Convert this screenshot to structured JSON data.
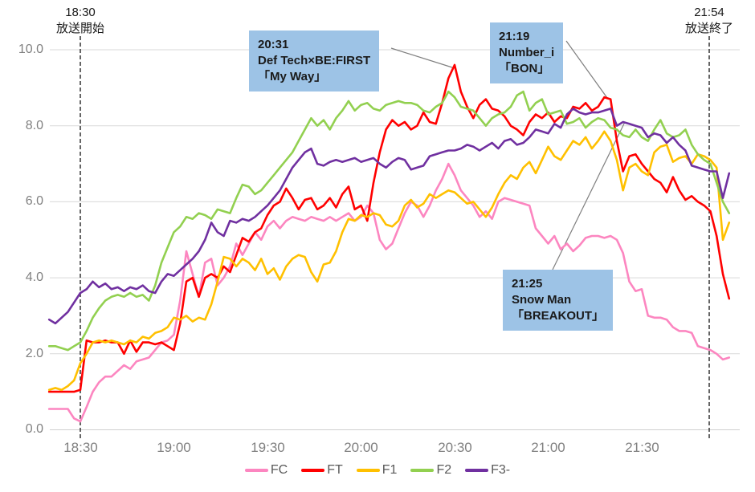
{
  "chart_data": {
    "type": "line",
    "title": "",
    "xlabel": "",
    "ylabel": "",
    "ylim": [
      0.0,
      10.0
    ],
    "grid": true,
    "legend_position": "bottom-center",
    "x_start": "18:20",
    "x_end": "21:58",
    "x_step_minutes": 2,
    "x_ticks": [
      "18:30",
      "19:00",
      "19:30",
      "20:00",
      "20:30",
      "21:00",
      "21:30"
    ],
    "y_ticks": [
      "10.0",
      "8.0",
      "6.0",
      "4.0",
      "2.0",
      "0.0"
    ],
    "grid_color": "#D9D9D9",
    "tick_color": "#808080",
    "series": [
      {
        "name": "FC",
        "color": "#FC86C0",
        "values": [
          0.55,
          0.55,
          0.55,
          0.55,
          0.3,
          0.22,
          0.6,
          1.0,
          1.25,
          1.4,
          1.4,
          1.55,
          1.7,
          1.6,
          1.8,
          1.85,
          1.9,
          2.1,
          2.3,
          2.35,
          2.5,
          3.4,
          4.7,
          4.1,
          3.5,
          4.4,
          4.5,
          3.8,
          4.0,
          4.3,
          4.9,
          4.6,
          4.9,
          5.2,
          5.0,
          5.35,
          5.5,
          5.3,
          5.5,
          5.6,
          5.55,
          5.5,
          5.6,
          5.55,
          5.5,
          5.6,
          5.5,
          5.6,
          5.7,
          5.5,
          5.6,
          5.9,
          5.7,
          5.0,
          4.75,
          4.9,
          5.3,
          5.7,
          6.0,
          5.9,
          5.6,
          5.9,
          6.3,
          6.6,
          7.0,
          6.7,
          6.3,
          6.1,
          5.9,
          5.6,
          5.75,
          5.55,
          6.0,
          6.1,
          6.05,
          6.0,
          5.95,
          5.9,
          5.3,
          5.1,
          4.9,
          5.1,
          4.75,
          4.9,
          4.7,
          4.85,
          5.05,
          5.1,
          5.1,
          5.05,
          5.1,
          5.0,
          4.65,
          3.9,
          3.65,
          3.7,
          3.0,
          2.95,
          2.95,
          2.9,
          2.7,
          2.6,
          2.6,
          2.55,
          2.2,
          2.15,
          2.1,
          2.0,
          1.85,
          1.9
        ]
      },
      {
        "name": "FT",
        "color": "#FF0000",
        "values": [
          1.0,
          1.0,
          1.0,
          1.0,
          1.0,
          1.05,
          2.35,
          2.3,
          2.3,
          2.35,
          2.3,
          2.3,
          2.0,
          2.35,
          2.05,
          2.3,
          2.3,
          2.25,
          2.3,
          2.2,
          2.1,
          2.8,
          3.9,
          4.0,
          3.5,
          4.0,
          4.1,
          4.0,
          4.3,
          4.15,
          4.6,
          5.05,
          4.95,
          5.2,
          5.3,
          5.65,
          5.9,
          6.0,
          6.35,
          6.1,
          5.8,
          6.05,
          6.1,
          5.8,
          5.9,
          6.1,
          5.85,
          6.2,
          6.4,
          5.8,
          5.9,
          5.5,
          6.5,
          7.3,
          7.9,
          8.15,
          8.0,
          8.1,
          7.9,
          8.0,
          8.35,
          8.1,
          8.05,
          8.6,
          9.25,
          9.6,
          8.9,
          8.5,
          8.2,
          8.55,
          8.7,
          8.45,
          8.4,
          8.25,
          8.0,
          7.9,
          7.75,
          8.1,
          8.3,
          8.2,
          8.35,
          8.1,
          8.25,
          8.2,
          8.5,
          8.45,
          8.6,
          8.4,
          8.5,
          8.75,
          8.7,
          7.6,
          6.8,
          7.2,
          7.25,
          7.0,
          6.8,
          6.6,
          6.5,
          6.25,
          6.65,
          6.3,
          6.05,
          6.15,
          6.0,
          5.9,
          5.75,
          5.1,
          4.1,
          3.45
        ]
      },
      {
        "name": "F1",
        "color": "#FFC000",
        "values": [
          1.05,
          1.1,
          1.05,
          1.15,
          1.3,
          1.75,
          2.0,
          2.3,
          2.35,
          2.3,
          2.35,
          2.3,
          2.25,
          2.35,
          2.3,
          2.45,
          2.4,
          2.55,
          2.6,
          2.7,
          2.95,
          2.9,
          3.0,
          2.85,
          2.95,
          2.9,
          3.3,
          3.9,
          4.55,
          4.5,
          4.3,
          4.5,
          4.4,
          4.2,
          4.5,
          4.1,
          4.25,
          3.95,
          4.3,
          4.5,
          4.6,
          4.55,
          4.15,
          3.9,
          4.35,
          4.4,
          4.7,
          5.2,
          5.55,
          5.5,
          5.65,
          5.6,
          5.7,
          5.65,
          5.4,
          5.35,
          5.5,
          5.9,
          6.05,
          5.85,
          5.95,
          6.2,
          6.1,
          6.2,
          6.3,
          6.25,
          6.1,
          5.95,
          6.0,
          5.8,
          5.6,
          5.85,
          6.2,
          6.5,
          6.7,
          6.6,
          6.9,
          7.05,
          6.75,
          7.1,
          7.45,
          7.2,
          7.1,
          7.35,
          7.6,
          7.5,
          7.7,
          7.4,
          7.6,
          7.85,
          7.6,
          7.1,
          6.3,
          6.9,
          7.0,
          6.8,
          6.7,
          7.3,
          7.45,
          7.5,
          7.05,
          7.15,
          7.2,
          7.0,
          7.25,
          7.2,
          7.1,
          6.9,
          5.0,
          5.45
        ]
      },
      {
        "name": "F2",
        "color": "#92D050",
        "values": [
          2.2,
          2.2,
          2.15,
          2.1,
          2.2,
          2.3,
          2.6,
          2.95,
          3.2,
          3.4,
          3.5,
          3.55,
          3.5,
          3.6,
          3.5,
          3.55,
          3.4,
          3.8,
          4.4,
          4.8,
          5.2,
          5.35,
          5.6,
          5.55,
          5.7,
          5.65,
          5.55,
          5.8,
          5.75,
          5.7,
          6.1,
          6.45,
          6.4,
          6.2,
          6.3,
          6.5,
          6.7,
          6.9,
          7.1,
          7.3,
          7.6,
          7.9,
          8.2,
          8.0,
          8.15,
          7.9,
          8.2,
          8.4,
          8.65,
          8.4,
          8.55,
          8.6,
          8.45,
          8.4,
          8.55,
          8.6,
          8.65,
          8.6,
          8.6,
          8.55,
          8.4,
          8.35,
          8.5,
          8.6,
          8.9,
          8.75,
          8.5,
          8.45,
          8.4,
          8.2,
          8.0,
          8.2,
          8.3,
          8.35,
          8.5,
          8.8,
          8.9,
          8.4,
          8.6,
          8.7,
          8.3,
          8.35,
          8.4,
          8.05,
          8.1,
          8.2,
          7.95,
          8.1,
          8.2,
          8.15,
          7.95,
          7.9,
          7.75,
          7.7,
          7.9,
          7.7,
          7.6,
          7.9,
          8.15,
          7.8,
          7.7,
          7.75,
          7.9,
          7.5,
          7.25,
          7.1,
          7.0,
          6.5,
          6.0,
          5.7
        ]
      },
      {
        "name": "F3-",
        "color": "#7030A0",
        "values": [
          2.9,
          2.8,
          2.95,
          3.1,
          3.35,
          3.6,
          3.7,
          3.9,
          3.75,
          3.85,
          3.7,
          3.75,
          3.65,
          3.75,
          3.7,
          3.8,
          3.65,
          3.6,
          3.9,
          4.1,
          4.05,
          4.2,
          4.35,
          4.5,
          4.7,
          5.0,
          5.45,
          5.2,
          5.1,
          5.5,
          5.45,
          5.55,
          5.5,
          5.6,
          5.75,
          5.9,
          6.1,
          6.3,
          6.6,
          6.9,
          7.1,
          7.3,
          7.4,
          7.0,
          6.95,
          7.05,
          7.1,
          7.05,
          7.1,
          7.15,
          7.05,
          7.1,
          7.15,
          7.0,
          6.9,
          7.05,
          7.15,
          7.1,
          6.85,
          6.9,
          6.95,
          7.2,
          7.25,
          7.3,
          7.35,
          7.35,
          7.4,
          7.5,
          7.45,
          7.35,
          7.45,
          7.55,
          7.4,
          7.6,
          7.65,
          7.5,
          7.55,
          7.7,
          7.9,
          7.85,
          7.8,
          8.05,
          7.95,
          8.3,
          8.45,
          8.35,
          8.3,
          8.35,
          8.35,
          8.4,
          8.45,
          8.0,
          8.1,
          8.05,
          8.0,
          7.95,
          7.7,
          7.8,
          7.75,
          7.55,
          7.7,
          7.5,
          7.35,
          6.95,
          6.9,
          6.85,
          6.8,
          6.8,
          6.1,
          6.75
        ]
      }
    ],
    "annotations": {
      "start_marker": {
        "time": "18:30",
        "label": "放送開始"
      },
      "end_marker": {
        "time": "21:54",
        "label": "放送終了"
      },
      "callouts": [
        {
          "time": "20:31",
          "artist": "Def Tech×BE:FIRST",
          "song": "「My Way」"
        },
        {
          "time": "21:19",
          "artist": "Number_i",
          "song": "「BON」"
        },
        {
          "time": "21:25",
          "artist": "Snow Man",
          "song": "「BREAKOUT」"
        }
      ]
    }
  }
}
